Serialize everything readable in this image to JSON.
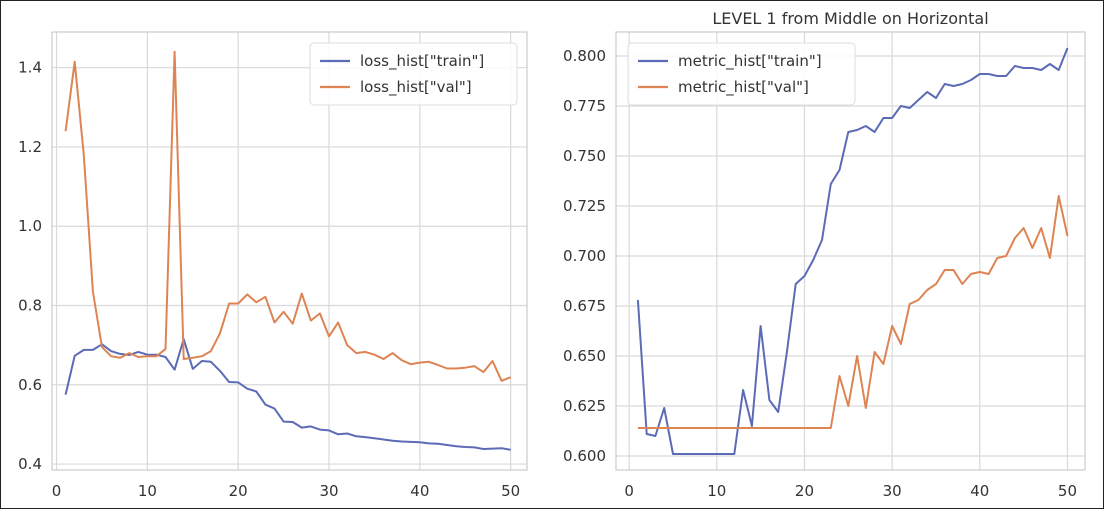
{
  "chart_data": [
    {
      "type": "line",
      "title": "",
      "xlabel": "",
      "ylabel": "",
      "xlim": [
        -0.5,
        51.8
      ],
      "ylim": [
        0.385,
        1.49
      ],
      "xticks": [
        0,
        10,
        20,
        30,
        40,
        50
      ],
      "yticks": [
        0.4,
        0.6,
        0.8,
        1.0,
        1.2,
        1.4
      ],
      "ytick_format": 1,
      "grid": true,
      "legend": "top-right",
      "x": [
        1,
        2,
        3,
        4,
        5,
        6,
        7,
        8,
        9,
        10,
        11,
        12,
        13,
        14,
        15,
        16,
        17,
        18,
        19,
        20,
        21,
        22,
        23,
        24,
        25,
        26,
        27,
        28,
        29,
        30,
        31,
        32,
        33,
        34,
        35,
        36,
        37,
        38,
        39,
        40,
        41,
        42,
        43,
        44,
        45,
        46,
        47,
        48,
        49,
        50
      ],
      "series": [
        {
          "name": "loss_hist[\"train\"]",
          "color": "#5b6bb6",
          "values": [
            0.575,
            0.673,
            0.688,
            0.688,
            0.702,
            0.685,
            0.678,
            0.675,
            0.683,
            0.676,
            0.676,
            0.67,
            0.638,
            0.715,
            0.64,
            0.66,
            0.658,
            0.635,
            0.607,
            0.606,
            0.59,
            0.583,
            0.55,
            0.54,
            0.507,
            0.506,
            0.492,
            0.495,
            0.487,
            0.485,
            0.475,
            0.477,
            0.47,
            0.468,
            0.465,
            0.462,
            0.459,
            0.457,
            0.456,
            0.455,
            0.452,
            0.451,
            0.448,
            0.445,
            0.443,
            0.442,
            0.438,
            0.439,
            0.44,
            0.436
          ]
        },
        {
          "name": "loss_hist[\"val\"]",
          "color": "#dd8452",
          "values": [
            1.24,
            1.415,
            1.18,
            0.835,
            0.695,
            0.672,
            0.668,
            0.68,
            0.67,
            0.672,
            0.672,
            0.69,
            1.44,
            0.665,
            0.668,
            0.672,
            0.685,
            0.73,
            0.805,
            0.805,
            0.828,
            0.808,
            0.822,
            0.757,
            0.784,
            0.754,
            0.83,
            0.762,
            0.78,
            0.722,
            0.757,
            0.7,
            0.68,
            0.683,
            0.676,
            0.665,
            0.68,
            0.662,
            0.652,
            0.656,
            0.658,
            0.65,
            0.641,
            0.641,
            0.643,
            0.647,
            0.632,
            0.66,
            0.61,
            0.619
          ]
        }
      ]
    },
    {
      "type": "line",
      "title": "LEVEL 1 from Middle on Horizontal",
      "xlabel": "",
      "ylabel": "",
      "xlim": [
        -1.5,
        52
      ],
      "ylim": [
        0.593,
        0.812
      ],
      "xticks": [
        0,
        10,
        20,
        30,
        40,
        50
      ],
      "yticks": [
        0.6,
        0.625,
        0.65,
        0.675,
        0.7,
        0.725,
        0.75,
        0.775,
        0.8
      ],
      "ytick_format": 3,
      "grid": true,
      "legend": "top-left",
      "x": [
        1,
        2,
        3,
        4,
        5,
        6,
        7,
        8,
        9,
        10,
        11,
        12,
        13,
        14,
        15,
        16,
        17,
        18,
        19,
        20,
        21,
        22,
        23,
        24,
        25,
        26,
        27,
        28,
        29,
        30,
        31,
        32,
        33,
        34,
        35,
        36,
        37,
        38,
        39,
        40,
        41,
        42,
        43,
        44,
        45,
        46,
        47,
        48,
        49,
        50
      ],
      "series": [
        {
          "name": "metric_hist[\"train\"]",
          "color": "#5b6bb6",
          "values": [
            0.678,
            0.611,
            0.61,
            0.624,
            0.601,
            0.601,
            0.601,
            0.601,
            0.601,
            0.601,
            0.601,
            0.601,
            0.633,
            0.615,
            0.665,
            0.628,
            0.622,
            0.652,
            0.686,
            0.69,
            0.698,
            0.708,
            0.736,
            0.743,
            0.762,
            0.763,
            0.765,
            0.762,
            0.769,
            0.769,
            0.775,
            0.774,
            0.778,
            0.782,
            0.779,
            0.786,
            0.785,
            0.786,
            0.788,
            0.791,
            0.791,
            0.79,
            0.79,
            0.795,
            0.794,
            0.794,
            0.793,
            0.796,
            0.793,
            0.804
          ]
        },
        {
          "name": "metric_hist[\"val\"]",
          "color": "#dd8452",
          "values": [
            0.614,
            0.614,
            0.614,
            0.614,
            0.614,
            0.614,
            0.614,
            0.614,
            0.614,
            0.614,
            0.614,
            0.614,
            0.614,
            0.614,
            0.614,
            0.614,
            0.614,
            0.614,
            0.614,
            0.614,
            0.614,
            0.614,
            0.614,
            0.64,
            0.625,
            0.65,
            0.624,
            0.652,
            0.646,
            0.665,
            0.656,
            0.676,
            0.678,
            0.683,
            0.686,
            0.693,
            0.693,
            0.686,
            0.691,
            0.692,
            0.691,
            0.699,
            0.7,
            0.709,
            0.714,
            0.704,
            0.714,
            0.699,
            0.73,
            0.71
          ]
        }
      ]
    }
  ]
}
